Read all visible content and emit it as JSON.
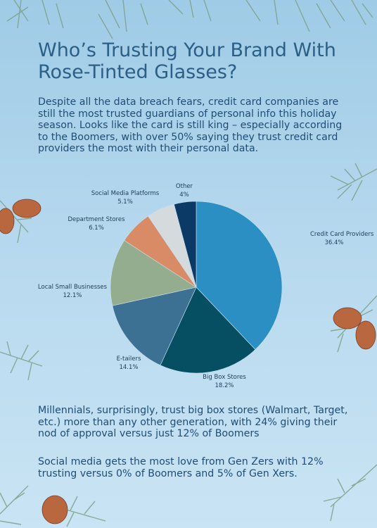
{
  "title": "Who’s Trusting Your Brand With Rose-Tinted Glasses?",
  "intro": "Despite all the data breach fears, credit card companies are still the most trusted guardians of personal info this holiday season. Looks like the card is still king – especially according to the Boomers, with over 50% saying they trust credit card providers the most with their personal data.",
  "paragraph_1": "Millennials, surprisingly, trust big box stores (Walmart, Target, etc.) more than any other generation, with 24% giving their nod of approval versus just 12% of Boomers",
  "paragraph_2": "Social media gets the most love from Gen Zers with 12% trusting versus 0% of Boomers and 5% of Gen Xers.",
  "chart_data": {
    "type": "pie",
    "categories": [
      "Credit Card Providers",
      "Big Box Stores",
      "E-tailers",
      "Local Small Businesses",
      "Department Stores",
      "Social Media Platforms",
      "Other"
    ],
    "values": [
      36.4,
      18.2,
      14.1,
      12.1,
      6.1,
      5.1,
      4
    ],
    "value_labels": [
      "36.4%",
      "18.2%",
      "14.1%",
      "12.1%",
      "6.1%",
      "5.1%",
      "4%"
    ],
    "colors": [
      "#2b8fc4",
      "#064f62",
      "#3d7194",
      "#94ad8f",
      "#d88b65",
      "#d5dadd",
      "#0c3a66",
      "#9abfc8"
    ],
    "start_angle": "12 o'clock",
    "direction": "clockwise"
  },
  "decoration_icons": [
    "pine-branch-icon",
    "pine-cone-icon"
  ]
}
